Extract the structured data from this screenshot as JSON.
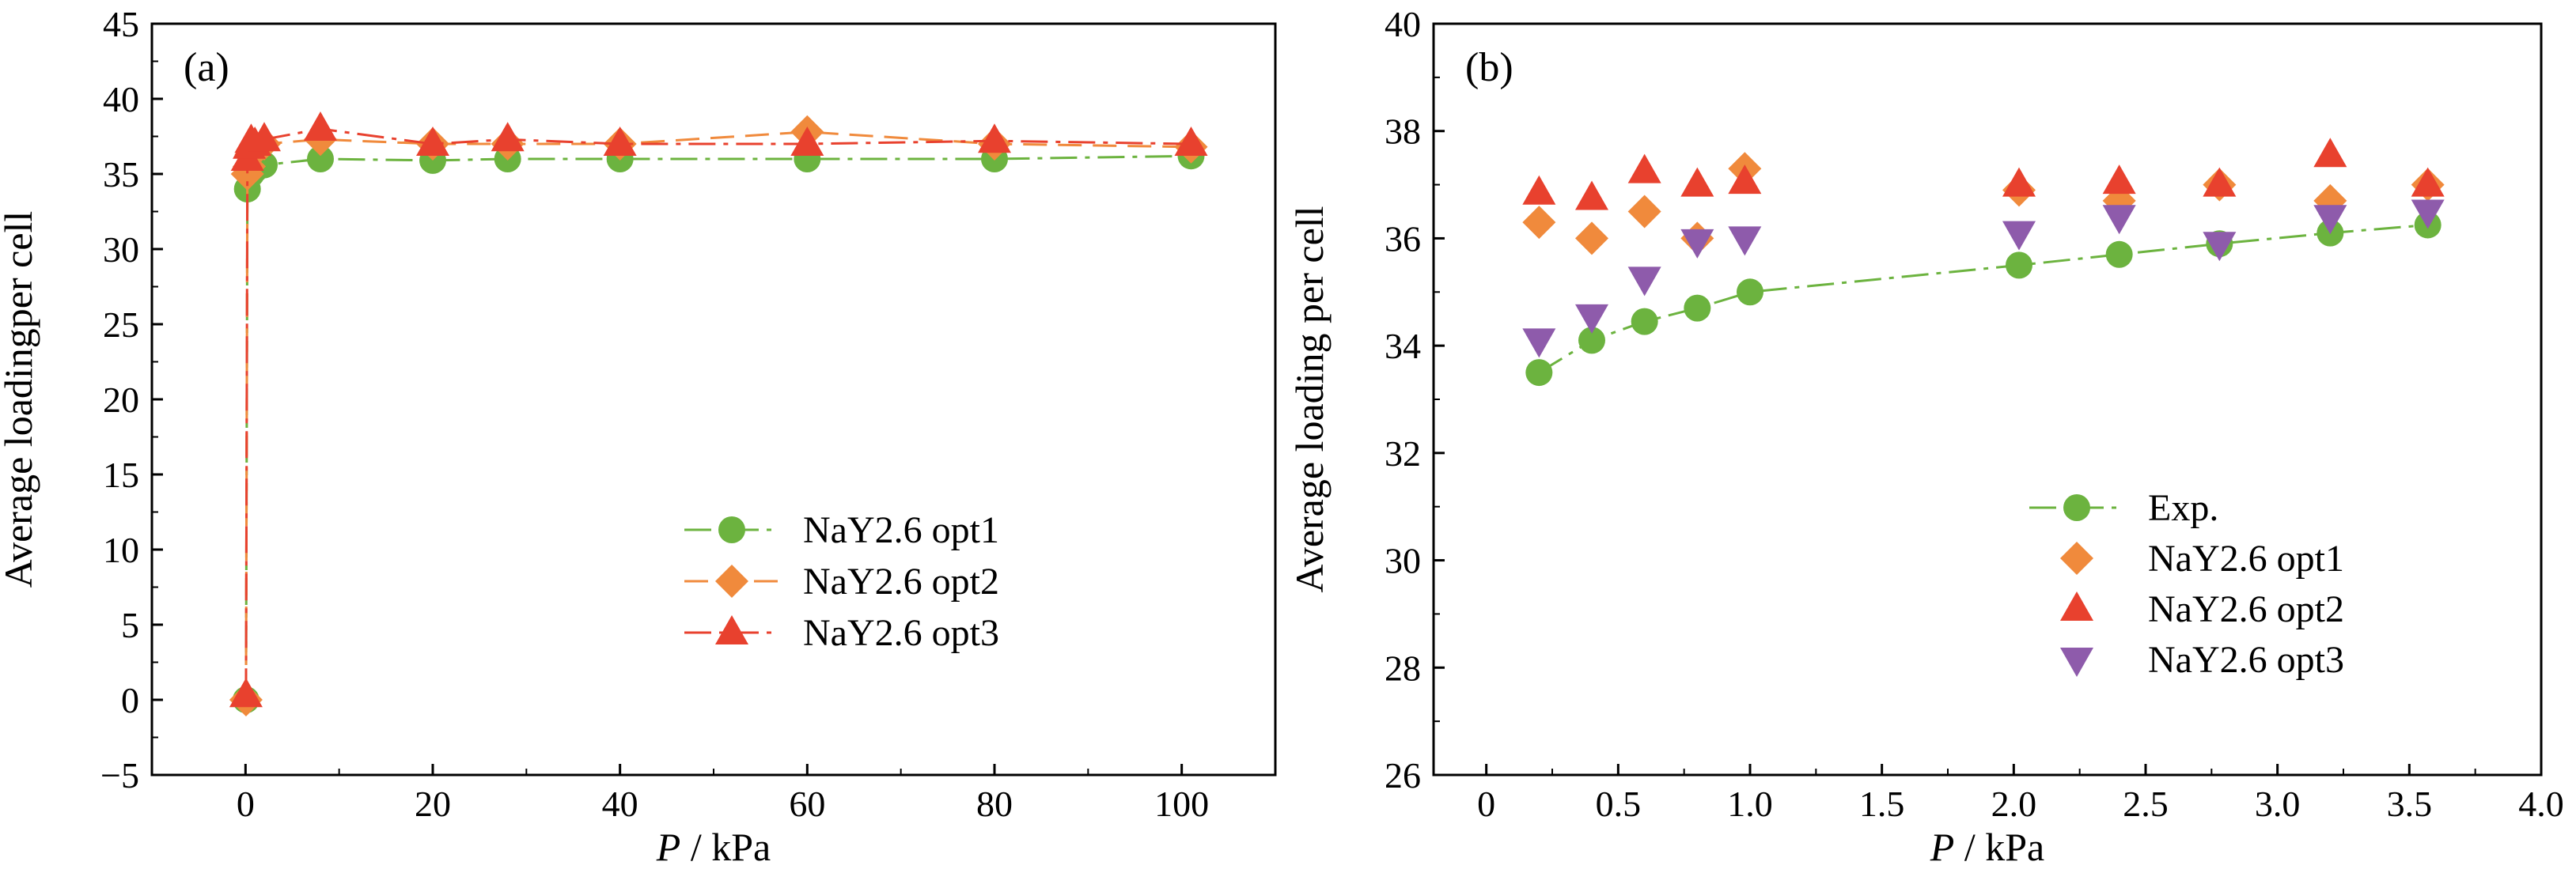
{
  "chart_data": [
    {
      "type": "scatter",
      "panel_label": "(a)",
      "xlabel_italic": "P",
      "xlabel_rest": " / kPa",
      "ylabel": "Average loadingper cell",
      "xlim": [
        -10,
        110
      ],
      "ylim": [
        -5,
        45
      ],
      "xticks": [
        0,
        20,
        40,
        60,
        80,
        100
      ],
      "yticks": [
        -5,
        0,
        5,
        10,
        15,
        20,
        25,
        30,
        35,
        40,
        45
      ],
      "ytick_labels": [
        "−5",
        "0",
        "5",
        "10",
        "15",
        "20",
        "25",
        "30",
        "35",
        "40",
        "45"
      ],
      "legend_position": "lower-right",
      "series": [
        {
          "name": "NaY2.6 opt1",
          "color": "#6cb33f",
          "marker": "circle",
          "line": "dashdot",
          "x": [
            0.05,
            0.2,
            0.6,
            1,
            2,
            8,
            20,
            28,
            40,
            60,
            80,
            101
          ],
          "y": [
            0,
            34,
            35,
            35.3,
            35.6,
            36,
            35.9,
            36,
            36,
            36,
            36,
            36.2
          ]
        },
        {
          "name": "NaY2.6 opt2",
          "color": "#f08a3c",
          "marker": "diamond",
          "line": "dashed",
          "x": [
            0.05,
            0.2,
            0.4,
            0.6,
            1,
            2,
            8,
            20,
            28,
            40,
            60,
            80,
            101
          ],
          "y": [
            0,
            35,
            35.5,
            36.3,
            36.5,
            37,
            37.3,
            37,
            37,
            37,
            37.8,
            37,
            36.8
          ]
        },
        {
          "name": "NaY2.6 opt3",
          "color": "#e8412e",
          "marker": "triangle-up",
          "line": "dashdot",
          "x": [
            0.05,
            0.2,
            0.4,
            0.6,
            1,
            2,
            8,
            20,
            28,
            40,
            60,
            80,
            101
          ],
          "y": [
            0.3,
            36,
            36.8,
            37.2,
            37,
            37.3,
            38,
            37,
            37.3,
            37,
            37,
            37.2,
            37
          ]
        }
      ]
    },
    {
      "type": "scatter",
      "panel_label": "(b)",
      "xlabel_italic": "P",
      "xlabel_rest": " / kPa",
      "ylabel": "Average loading per cell",
      "xlim": [
        -0.2,
        4.0
      ],
      "ylim": [
        26,
        40
      ],
      "xticks": [
        0,
        0.5,
        1.0,
        1.5,
        2.0,
        2.5,
        3.0,
        3.5,
        4.0
      ],
      "xtick_labels": [
        "0",
        "0.5",
        "1.0",
        "1.5",
        "2.0",
        "2.5",
        "3.0",
        "3.5",
        "4.0"
      ],
      "yticks": [
        26,
        28,
        30,
        32,
        34,
        36,
        38,
        40
      ],
      "legend_position": "lower-right",
      "series": [
        {
          "name": "Exp.",
          "color": "#6cb33f",
          "marker": "circle",
          "line": "dashdot",
          "x": [
            0.2,
            0.4,
            0.6,
            0.8,
            1.0,
            2.02,
            2.4,
            2.78,
            3.2,
            3.57
          ],
          "y": [
            33.5,
            34.1,
            34.45,
            34.7,
            35.0,
            35.5,
            35.7,
            35.9,
            36.1,
            36.25
          ]
        },
        {
          "name": "NaY2.6 opt1",
          "color": "#f08a3c",
          "marker": "diamond",
          "line": "none",
          "x": [
            0.2,
            0.4,
            0.6,
            0.8,
            0.98,
            2.02,
            2.4,
            2.78,
            3.2,
            3.57
          ],
          "y": [
            36.3,
            36.0,
            36.5,
            36.0,
            37.3,
            36.9,
            36.7,
            37.0,
            36.7,
            37.0
          ]
        },
        {
          "name": "NaY2.6 opt2",
          "color": "#e8412e",
          "marker": "triangle-up",
          "line": "none",
          "x": [
            0.2,
            0.4,
            0.6,
            0.8,
            0.98,
            2.02,
            2.4,
            2.78,
            3.2,
            3.57
          ],
          "y": [
            36.85,
            36.75,
            37.25,
            37.0,
            37.05,
            37.0,
            37.05,
            37.0,
            37.55,
            37.0
          ]
        },
        {
          "name": "NaY2.6 opt3",
          "color": "#8e5bab",
          "marker": "triangle-down",
          "line": "none",
          "x": [
            0.2,
            0.4,
            0.6,
            0.8,
            0.98,
            2.02,
            2.4,
            2.78,
            3.2,
            3.57
          ],
          "y": [
            34.1,
            34.55,
            35.25,
            35.95,
            36.0,
            36.1,
            36.4,
            35.9,
            36.4,
            36.5
          ]
        }
      ]
    }
  ]
}
